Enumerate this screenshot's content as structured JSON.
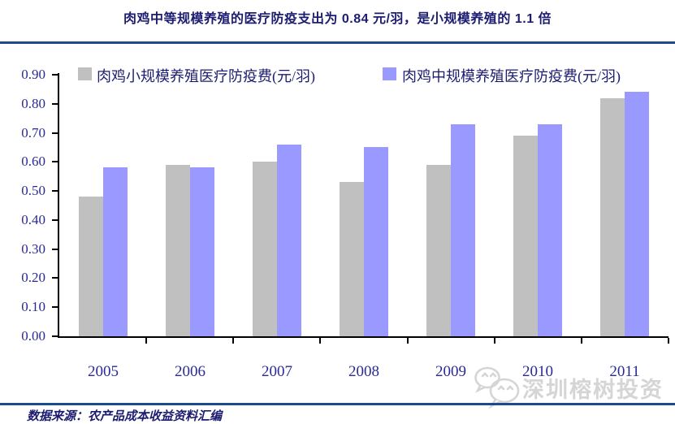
{
  "title": "肉鸡中等规模养殖的医疗防疫支出为 0.84 元/羽，是小规模养殖的 1.1 倍",
  "source_note": "数据来源：农产品成本收益资料汇编",
  "watermark": {
    "icon": "wechat-icon",
    "text": "深圳榕树投资"
  },
  "colors": {
    "small_scale": "#c0c0c0",
    "mid_scale": "#9999ff",
    "text_navy": "#1c1c70",
    "tick_navy": "#2a2a96",
    "rule_blue": "#1a4a8f",
    "axis_black": "#000000",
    "watermark_gray": "#d5d5d5"
  },
  "chart_data": {
    "type": "bar",
    "categories": [
      "2005",
      "2006",
      "2007",
      "2008",
      "2009",
      "2010",
      "2011"
    ],
    "series": [
      {
        "name": "肉鸡小规模养殖医疗防疫费(元/羽)",
        "color_key": "small_scale",
        "values": [
          0.48,
          0.59,
          0.6,
          0.53,
          0.59,
          0.69,
          0.82
        ]
      },
      {
        "name": "肉鸡中规模养殖医疗防疫费(元/羽)",
        "color_key": "mid_scale",
        "values": [
          0.58,
          0.58,
          0.66,
          0.65,
          0.73,
          0.73,
          0.84
        ]
      }
    ],
    "ylim": [
      0,
      0.9
    ],
    "ytick_step": 0.1,
    "ytick_labels": [
      "0.90",
      "0.80",
      "0.70",
      "0.60",
      "0.50",
      "0.40",
      "0.30",
      "0.20",
      "0.10",
      "0.00"
    ],
    "grid": false,
    "legend_position": "top-inside"
  }
}
